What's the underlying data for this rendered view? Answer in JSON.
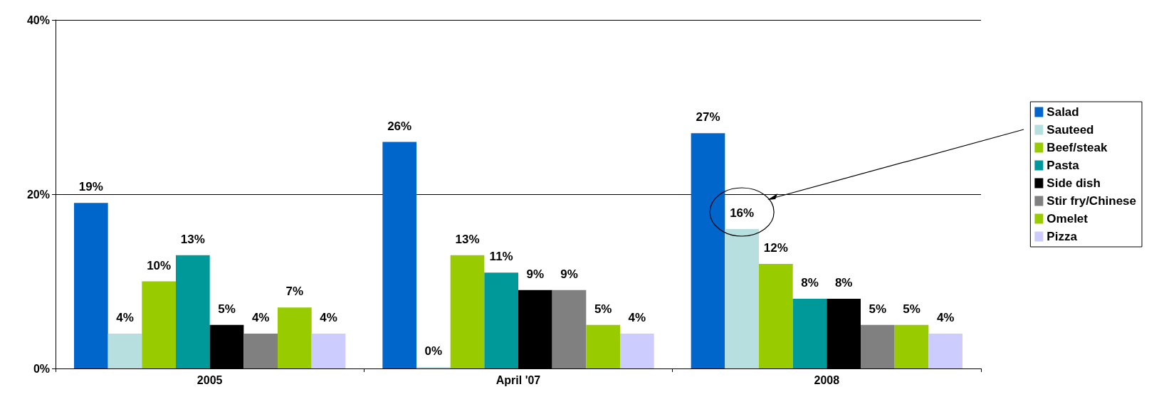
{
  "chart_data": {
    "type": "bar",
    "categories": [
      "2005",
      "April '07",
      "2008"
    ],
    "series": [
      {
        "name": "Salad",
        "color": "#0066cc",
        "values": [
          19,
          26,
          27
        ],
        "value_labels": [
          "19%",
          "26%",
          "27%"
        ]
      },
      {
        "name": "Sauteed",
        "color": "#b7dfe0",
        "values": [
          4,
          0,
          16
        ],
        "value_labels": [
          "4%",
          "0%",
          "16%"
        ]
      },
      {
        "name": "Beef/steak",
        "color": "#99cc00",
        "values": [
          10,
          13,
          12
        ],
        "value_labels": [
          "10%",
          "13%",
          "12%"
        ]
      },
      {
        "name": "Pasta",
        "color": "#009999",
        "values": [
          13,
          11,
          8
        ],
        "value_labels": [
          "13%",
          "11%",
          "8%"
        ]
      },
      {
        "name": "Side dish",
        "color": "#000000",
        "values": [
          5,
          9,
          8
        ],
        "value_labels": [
          "5%",
          "9%",
          "8%"
        ]
      },
      {
        "name": "Stir fry/Chinese",
        "color": "#808080",
        "values": [
          4,
          9,
          5
        ],
        "value_labels": [
          "4%",
          "9%",
          "5%"
        ]
      },
      {
        "name": "Omelet",
        "color": "#99cc00",
        "values": [
          7,
          5,
          5
        ],
        "value_labels": [
          "7%",
          "5%",
          "5%"
        ]
      },
      {
        "name": "Pizza",
        "color": "#ccccff",
        "values": [
          4,
          4,
          4
        ],
        "value_labels": [
          "4%",
          "4%",
          "4%"
        ]
      }
    ],
    "ylim": [
      0,
      40
    ],
    "yticks": [
      {
        "value": 0,
        "label": "0%"
      },
      {
        "value": 20,
        "label": "20%"
      },
      {
        "value": 40,
        "label": "40%"
      }
    ],
    "grid": "y",
    "legend": "right"
  }
}
